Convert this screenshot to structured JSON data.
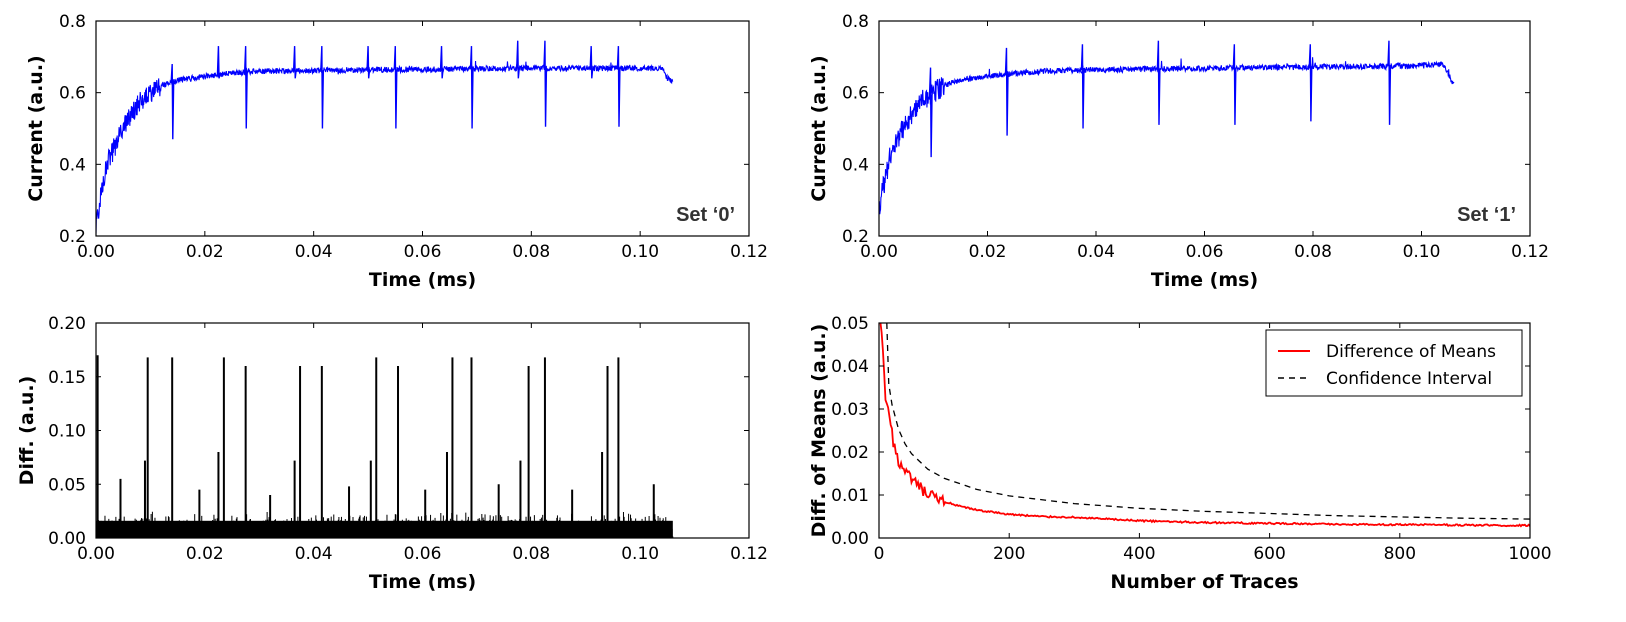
{
  "chart_data": [
    {
      "type": "line",
      "panel": "top-left",
      "title": "",
      "xlabel": "Time (ms)",
      "ylabel": "Current (a.u.)",
      "xlim": [
        0,
        0.12
      ],
      "ylim": [
        0.2,
        0.8
      ],
      "xticks": [
        "0.00",
        "0.02",
        "0.04",
        "0.06",
        "0.08",
        "0.10",
        "0.12"
      ],
      "yticks": [
        "0.2",
        "0.4",
        "0.6",
        "0.8"
      ],
      "annotation": "Set ‘0’",
      "series": [
        {
          "color": "#0000ff",
          "description_points": {
            "x": [
              0.0,
              0.001,
              0.002,
              0.004,
              0.006,
              0.008,
              0.01,
              0.012,
              0.015,
              0.02,
              0.025,
              0.03,
              0.04,
              0.05,
              0.06,
              0.07,
              0.08,
              0.09,
              0.1,
              0.104,
              0.105,
              0.106
            ],
            "y": [
              0.22,
              0.33,
              0.4,
              0.47,
              0.53,
              0.57,
              0.6,
              0.62,
              0.635,
              0.645,
              0.655,
              0.66,
              0.662,
              0.664,
              0.665,
              0.667,
              0.668,
              0.668,
              0.668,
              0.668,
              0.64,
              0.63
            ]
          },
          "spikes": [
            {
              "x": 0.014,
              "up": 0.68,
              "down": 0.47
            },
            {
              "x": 0.0225,
              "up": 0.73,
              "down": 0.64
            },
            {
              "x": 0.0275,
              "up": 0.73,
              "down": 0.5
            },
            {
              "x": 0.0365,
              "up": 0.73,
              "down": 0.64
            },
            {
              "x": 0.0415,
              "up": 0.73,
              "down": 0.5
            },
            {
              "x": 0.05,
              "up": 0.73,
              "down": 0.64
            },
            {
              "x": 0.055,
              "up": 0.73,
              "down": 0.5
            },
            {
              "x": 0.0635,
              "up": 0.73,
              "down": 0.64
            },
            {
              "x": 0.069,
              "up": 0.73,
              "down": 0.5
            },
            {
              "x": 0.0775,
              "up": 0.745,
              "down": 0.64
            },
            {
              "x": 0.0825,
              "up": 0.745,
              "down": 0.505
            },
            {
              "x": 0.091,
              "up": 0.73,
              "down": 0.64
            },
            {
              "x": 0.096,
              "up": 0.73,
              "down": 0.505
            }
          ]
        }
      ]
    },
    {
      "type": "line",
      "panel": "top-right",
      "title": "",
      "xlabel": "Time (ms)",
      "ylabel": "Current (a.u.)",
      "xlim": [
        0,
        0.12
      ],
      "ylim": [
        0.2,
        0.8
      ],
      "xticks": [
        "0.00",
        "0.02",
        "0.04",
        "0.06",
        "0.08",
        "0.10",
        "0.12"
      ],
      "yticks": [
        "0.2",
        "0.4",
        "0.6",
        "0.8"
      ],
      "annotation": "Set ‘1’",
      "series": [
        {
          "color": "#0000ff",
          "description_points": {
            "x": [
              0.0,
              0.001,
              0.002,
              0.004,
              0.006,
              0.008,
              0.01,
              0.012,
              0.015,
              0.02,
              0.025,
              0.03,
              0.04,
              0.05,
              0.06,
              0.07,
              0.08,
              0.09,
              0.1,
              0.104,
              0.105,
              0.106
            ],
            "y": [
              0.28,
              0.35,
              0.42,
              0.49,
              0.54,
              0.58,
              0.6,
              0.62,
              0.635,
              0.645,
              0.655,
              0.66,
              0.664,
              0.666,
              0.668,
              0.67,
              0.672,
              0.673,
              0.675,
              0.68,
              0.65,
              0.62
            ]
          },
          "spikes": [
            {
              "x": 0.0095,
              "up": 0.67,
              "down": 0.42
            },
            {
              "x": 0.0235,
              "up": 0.725,
              "down": 0.48
            },
            {
              "x": 0.0375,
              "up": 0.735,
              "down": 0.5
            },
            {
              "x": 0.0515,
              "up": 0.745,
              "down": 0.51
            },
            {
              "x": 0.0655,
              "up": 0.735,
              "down": 0.51
            },
            {
              "x": 0.0795,
              "up": 0.735,
              "down": 0.52
            },
            {
              "x": 0.094,
              "up": 0.745,
              "down": 0.51
            }
          ]
        }
      ]
    },
    {
      "type": "bar",
      "panel": "bottom-left",
      "title": "",
      "xlabel": "Time (ms)",
      "ylabel": "Diff. (a.u.)",
      "xlim": [
        0,
        0.12
      ],
      "ylim": [
        0,
        0.2
      ],
      "xticks": [
        "0.00",
        "0.02",
        "0.04",
        "0.06",
        "0.08",
        "0.10",
        "0.12"
      ],
      "yticks": [
        "0.00",
        "0.05",
        "0.10",
        "0.15",
        "0.20"
      ],
      "series": [
        {
          "color": "#000000",
          "noise_band": [
            0.0,
            0.025
          ],
          "data_extent": [
            0.0,
            0.106
          ],
          "peaks": {
            "x": [
              0.0003,
              0.0045,
              0.009,
              0.0095,
              0.014,
              0.019,
              0.0225,
              0.0235,
              0.0275,
              0.032,
              0.0365,
              0.0375,
              0.0415,
              0.0465,
              0.0505,
              0.0515,
              0.0555,
              0.0605,
              0.0645,
              0.0655,
              0.069,
              0.074,
              0.078,
              0.0795,
              0.0825,
              0.0875,
              0.093,
              0.094,
              0.096,
              0.1025
            ],
            "y": [
              0.17,
              0.055,
              0.072,
              0.168,
              0.168,
              0.045,
              0.08,
              0.168,
              0.16,
              0.04,
              0.072,
              0.16,
              0.16,
              0.048,
              0.072,
              0.168,
              0.16,
              0.045,
              0.08,
              0.168,
              0.168,
              0.05,
              0.072,
              0.16,
              0.168,
              0.045,
              0.08,
              0.16,
              0.168,
              0.05
            ]
          }
        }
      ]
    },
    {
      "type": "line",
      "panel": "bottom-right",
      "title": "",
      "xlabel": "Number of Traces",
      "ylabel": "Diff. of Means (a.u.)",
      "xlim": [
        0,
        1000
      ],
      "ylim": [
        0,
        0.05
      ],
      "xticks": [
        "0",
        "200",
        "400",
        "600",
        "800",
        "1000"
      ],
      "yticks": [
        "0.00",
        "0.01",
        "0.02",
        "0.03",
        "0.04",
        "0.05"
      ],
      "legend": {
        "placement": "top-right",
        "entries": [
          "Difference of Means",
          "Confidence Interval"
        ]
      },
      "series": [
        {
          "name": "Difference of Means",
          "color": "#ff0000",
          "style": "solid",
          "x": [
            2,
            5,
            10,
            15,
            20,
            25,
            30,
            40,
            50,
            60,
            70,
            80,
            100,
            120,
            150,
            175,
            200,
            250,
            300,
            350,
            400,
            500,
            600,
            700,
            800,
            900,
            1000
          ],
          "y": [
            0.05,
            0.045,
            0.033,
            0.028,
            0.024,
            0.02,
            0.018,
            0.015,
            0.0135,
            0.012,
            0.0105,
            0.0095,
            0.0085,
            0.0075,
            0.0065,
            0.006,
            0.0055,
            0.005,
            0.0048,
            0.0044,
            0.004,
            0.0036,
            0.0034,
            0.0032,
            0.0031,
            0.003,
            0.0029
          ]
        },
        {
          "name": "Confidence Interval",
          "color": "#000000",
          "style": "dashed",
          "x": [
            12,
            15,
            20,
            30,
            40,
            50,
            75,
            100,
            150,
            200,
            300,
            400,
            500,
            600,
            700,
            800,
            900,
            1000
          ],
          "y": [
            0.05,
            0.0358,
            0.031,
            0.0253,
            0.0219,
            0.0196,
            0.016,
            0.0139,
            0.0113,
            0.0098,
            0.008,
            0.0069,
            0.0062,
            0.0057,
            0.0052,
            0.0049,
            0.0046,
            0.0044
          ]
        }
      ]
    }
  ]
}
